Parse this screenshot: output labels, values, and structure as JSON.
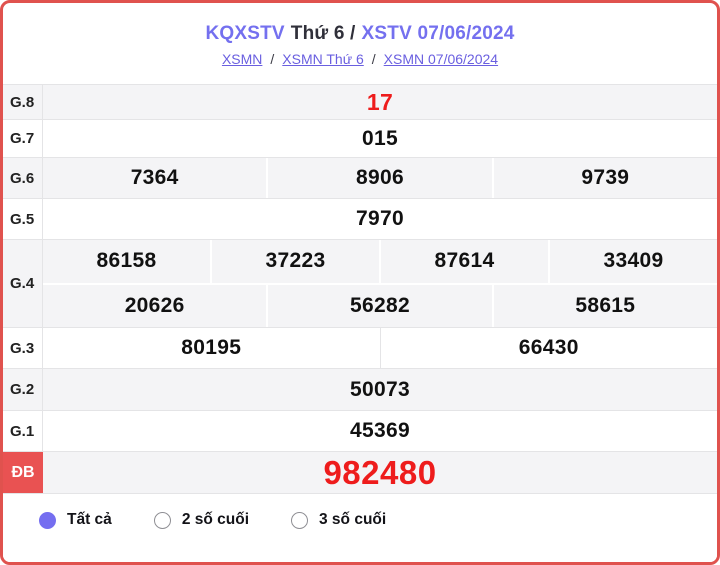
{
  "header": {
    "title": {
      "left": "KQXSTV",
      "mid": "Thứ 6 /",
      "right": "XSTV 07/06/2024"
    },
    "links": [
      "XSMN",
      "XSMN Thứ 6",
      "XSMN 07/06/2024"
    ],
    "separator": "/"
  },
  "table": {
    "rows": [
      {
        "label": "G.8",
        "groups": [
          [
            "17"
          ]
        ],
        "red": true
      },
      {
        "label": "G.7",
        "groups": [
          [
            "015"
          ]
        ]
      },
      {
        "label": "G.6",
        "groups": [
          [
            "7364",
            "8906",
            "9739"
          ]
        ]
      },
      {
        "label": "G.5",
        "groups": [
          [
            "7970"
          ]
        ]
      },
      {
        "label": "G.4",
        "groups": [
          [
            "86158",
            "37223",
            "87614",
            "33409"
          ],
          [
            "20626",
            "56282",
            "58615"
          ]
        ]
      },
      {
        "label": "G.3",
        "groups": [
          [
            "80195",
            "66430"
          ]
        ]
      },
      {
        "label": "G.2",
        "groups": [
          [
            "50073"
          ]
        ]
      },
      {
        "label": "G.1",
        "groups": [
          [
            "45369"
          ]
        ]
      },
      {
        "label": "ĐB",
        "groups": [
          [
            "982480"
          ]
        ],
        "red": true,
        "special": true
      }
    ]
  },
  "filters": [
    {
      "label": "Tất cả",
      "selected": true,
      "icon": "radio-selected-icon"
    },
    {
      "label": "2 số cuối",
      "selected": false,
      "icon": "radio-unselected-icon"
    },
    {
      "label": "3 số cuối",
      "selected": false,
      "icon": "radio-unselected-icon"
    }
  ],
  "colors": {
    "card_border": "#e0524e",
    "special_label_bg": "#e95252",
    "highlight_red": "#ee1c1c",
    "title_purple": "#7470ef",
    "link_purple": "#6a5fe0",
    "row_shade": "#f4f4f6",
    "radio_accent": "#756ef0"
  }
}
